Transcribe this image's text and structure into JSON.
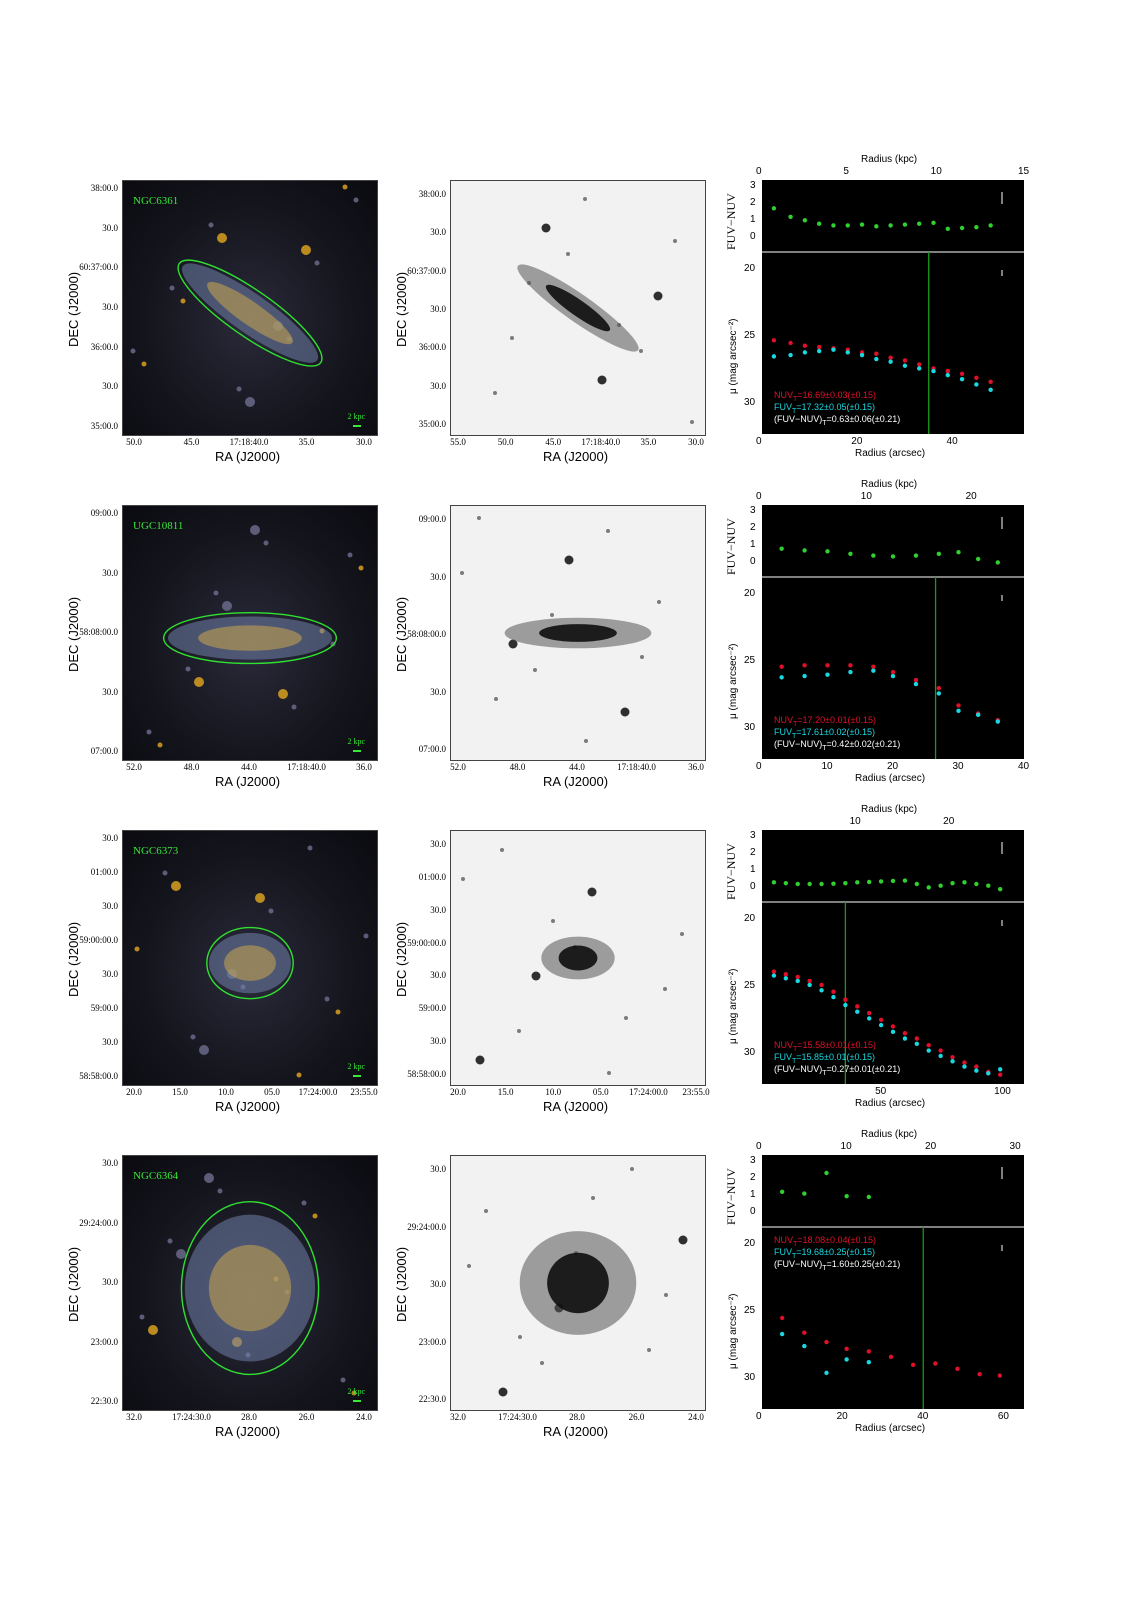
{
  "axis_titles": {
    "ra": "RA (J2000)",
    "dec": "DEC (J2000)",
    "radius_kpc": "Radius (kpc)",
    "radius_arcsec": "Radius (arcsec)",
    "fuv_nuv": "FUV−NUV",
    "mu": "μ (mag arcsec⁻²)"
  },
  "scale_label": "2 kpc",
  "colors": {
    "nuv": "#e0102a",
    "fuv": "#18d8e0",
    "color": "#30d030",
    "ellipse": "#30e030",
    "text_white": "#ffffff"
  },
  "rows": [
    {
      "galaxy": "NGC6361",
      "ellipse": {
        "rx": 0.34,
        "ry": 0.09,
        "angle": 35
      },
      "dec_ticks": [
        "38:00.0",
        "30.0",
        "60:37:00.0",
        "30.0",
        "36:00.0",
        "30.0",
        "35:00.0"
      ],
      "ra_ticks_color": [
        "50.0",
        "45.0",
        "17:18:40.0",
        "35.0",
        "30.0"
      ],
      "ra_ticks_gray": [
        "55.0",
        "50.0",
        "45.0",
        "17:18:40.0",
        "35.0",
        "30.0"
      ],
      "stats": [
        "NUV_T=16.69±0.03(±0.15)",
        "FUV_T=17.32±0.05(±0.15)",
        "(FUV−NUV)_T=0.63±0.06(±0.21)"
      ],
      "stats_pos": "bottom",
      "chart_data": {
        "type": "scatter",
        "kpc_ticks": [
          "0",
          "5",
          "10",
          "15"
        ],
        "kpc_max": 15,
        "xlim": [
          0,
          55
        ],
        "x_ticks": [
          "0",
          "20",
          "40"
        ],
        "color_ylim": [
          -0.5,
          3
        ],
        "color_ticks": [
          "0",
          "1",
          "2",
          "3"
        ],
        "mu_ylim": [
          19,
          32
        ],
        "mu_ticks": [
          "20",
          "25",
          "30"
        ],
        "cut_radius": 35,
        "color_points": [
          [
            2.5,
            1.7
          ],
          [
            6,
            1.2
          ],
          [
            9,
            1.0
          ],
          [
            12,
            0.8
          ],
          [
            15,
            0.7
          ],
          [
            18,
            0.7
          ],
          [
            21,
            0.75
          ],
          [
            24,
            0.65
          ],
          [
            27,
            0.7
          ],
          [
            30,
            0.75
          ],
          [
            33,
            0.8
          ],
          [
            36,
            0.85
          ],
          [
            39,
            0.5
          ],
          [
            42,
            0.55
          ],
          [
            45,
            0.6
          ],
          [
            48,
            0.7
          ]
        ],
        "nuv_points": [
          [
            2.5,
            25.3
          ],
          [
            6,
            25.5
          ],
          [
            9,
            25.7
          ],
          [
            12,
            25.8
          ],
          [
            15,
            25.9
          ],
          [
            18,
            26.0
          ],
          [
            21,
            26.2
          ],
          [
            24,
            26.3
          ],
          [
            27,
            26.6
          ],
          [
            30,
            26.8
          ],
          [
            33,
            27.1
          ],
          [
            36,
            27.4
          ],
          [
            39,
            27.6
          ],
          [
            42,
            27.8
          ],
          [
            45,
            28.1
          ],
          [
            48,
            28.4
          ]
        ],
        "fuv_points": [
          [
            2.5,
            26.5
          ],
          [
            6,
            26.4
          ],
          [
            9,
            26.2
          ],
          [
            12,
            26.1
          ],
          [
            15,
            26.0
          ],
          [
            18,
            26.2
          ],
          [
            21,
            26.4
          ],
          [
            24,
            26.7
          ],
          [
            27,
            26.9
          ],
          [
            30,
            27.2
          ],
          [
            33,
            27.4
          ],
          [
            36,
            27.6
          ],
          [
            39,
            27.9
          ],
          [
            42,
            28.2
          ],
          [
            45,
            28.6
          ],
          [
            48,
            29.0
          ]
        ]
      }
    },
    {
      "galaxy": "UGC10811",
      "ellipse": {
        "rx": 0.34,
        "ry": 0.1,
        "angle": 0
      },
      "dec_ticks": [
        "09:00.0",
        "30.0",
        "58:08:00.0",
        "30.0",
        "07:00.0"
      ],
      "ra_ticks_color": [
        "52.0",
        "48.0",
        "44.0",
        "17:18:40.0",
        "36.0"
      ],
      "ra_ticks_gray": [
        "52.0",
        "48.0",
        "44.0",
        "17:18:40.0",
        "36.0"
      ],
      "stats": [
        "NUV_T=17.20±0.01(±0.15)",
        "FUV_T=17.61±0.02(±0.15)",
        "(FUV−NUV)_T=0.42±0.02(±0.21)"
      ],
      "stats_pos": "bottom",
      "chart_data": {
        "type": "scatter",
        "kpc_ticks": [
          "0",
          "10",
          "20"
        ],
        "kpc_max": 25,
        "xlim": [
          0,
          40
        ],
        "x_ticks": [
          "0",
          "10",
          "20",
          "30",
          "40"
        ],
        "color_ylim": [
          -0.5,
          3
        ],
        "color_ticks": [
          "0",
          "1",
          "2",
          "3"
        ],
        "mu_ylim": [
          19,
          32
        ],
        "mu_ticks": [
          "20",
          "25",
          "30"
        ],
        "cut_radius": 26.5,
        "color_points": [
          [
            3,
            0.8
          ],
          [
            6.5,
            0.7
          ],
          [
            10,
            0.65
          ],
          [
            13.5,
            0.5
          ],
          [
            17,
            0.4
          ],
          [
            20,
            0.35
          ],
          [
            23.5,
            0.4
          ],
          [
            27,
            0.5
          ],
          [
            30,
            0.6
          ],
          [
            33,
            0.2
          ],
          [
            36,
            0.0
          ]
        ],
        "nuv_points": [
          [
            3,
            25.4
          ],
          [
            6.5,
            25.3
          ],
          [
            10,
            25.3
          ],
          [
            13.5,
            25.3
          ],
          [
            17,
            25.4
          ],
          [
            20,
            25.8
          ],
          [
            23.5,
            26.4
          ],
          [
            27,
            27.0
          ],
          [
            30,
            28.3
          ],
          [
            33,
            28.9
          ],
          [
            36,
            29.4
          ]
        ],
        "fuv_points": [
          [
            3,
            26.2
          ],
          [
            6.5,
            26.1
          ],
          [
            10,
            26.0
          ],
          [
            13.5,
            25.8
          ],
          [
            17,
            25.7
          ],
          [
            20,
            26.1
          ],
          [
            23.5,
            26.7
          ],
          [
            27,
            27.4
          ],
          [
            30,
            28.7
          ],
          [
            33,
            29.0
          ],
          [
            36,
            29.5
          ]
        ]
      }
    },
    {
      "galaxy": "NGC6373",
      "ellipse": {
        "rx": 0.17,
        "ry": 0.14,
        "angle": 0
      },
      "dec_ticks": [
        "30.0",
        "01:00.0",
        "30.0",
        "59:00:00.0",
        "30.0",
        "59:00.0",
        "30.0",
        "58:58:00.0"
      ],
      "ra_ticks_color": [
        "20.0",
        "15.0",
        "10.0",
        "05.0",
        "17:24:00.0",
        "23:55.0"
      ],
      "ra_ticks_gray": [
        "20.0",
        "15.0",
        "10.0",
        "05.0",
        "17:24:00.0",
        "23:55.0"
      ],
      "stats": [
        "NUV_T=15.58±0.01(±0.15)",
        "FUV_T=15.85±0.01(±0.15)",
        "(FUV−NUV)_T=0.27±0.01(±0.21)"
      ],
      "stats_pos": "bottom",
      "chart_data": {
        "type": "scatter",
        "kpc_ticks": [
          "10",
          "20"
        ],
        "kpc_max": 28,
        "xlim": [
          0,
          110
        ],
        "x_ticks": [
          "50",
          "100"
        ],
        "color_ylim": [
          -0.5,
          3
        ],
        "color_ticks": [
          "0",
          "1",
          "2",
          "3"
        ],
        "mu_ylim": [
          19,
          32
        ],
        "mu_ticks": [
          "20",
          "25",
          "30"
        ],
        "cut_radius": 35,
        "color_points": [
          [
            5,
            0.3
          ],
          [
            10,
            0.25
          ],
          [
            15,
            0.2
          ],
          [
            20,
            0.2
          ],
          [
            25,
            0.2
          ],
          [
            30,
            0.22
          ],
          [
            35,
            0.25
          ],
          [
            40,
            0.3
          ],
          [
            45,
            0.32
          ],
          [
            50,
            0.35
          ],
          [
            55,
            0.38
          ],
          [
            60,
            0.4
          ],
          [
            65,
            0.2
          ],
          [
            70,
            0.0
          ],
          [
            75,
            0.1
          ],
          [
            80,
            0.25
          ],
          [
            85,
            0.3
          ],
          [
            90,
            0.2
          ],
          [
            95,
            0.1
          ],
          [
            100,
            -0.1
          ]
        ],
        "nuv_points": [
          [
            5,
            23.9
          ],
          [
            10,
            24.1
          ],
          [
            15,
            24.3
          ],
          [
            20,
            24.6
          ],
          [
            25,
            24.9
          ],
          [
            30,
            25.4
          ],
          [
            35,
            26.0
          ],
          [
            40,
            26.5
          ],
          [
            45,
            27.0
          ],
          [
            50,
            27.5
          ],
          [
            55,
            28.0
          ],
          [
            60,
            28.5
          ],
          [
            65,
            28.9
          ],
          [
            70,
            29.4
          ],
          [
            75,
            29.8
          ],
          [
            80,
            30.3
          ],
          [
            85,
            30.7
          ],
          [
            90,
            31.0
          ],
          [
            95,
            31.4
          ],
          [
            100,
            31.6
          ]
        ],
        "fuv_points": [
          [
            5,
            24.2
          ],
          [
            10,
            24.4
          ],
          [
            15,
            24.6
          ],
          [
            20,
            24.9
          ],
          [
            25,
            25.3
          ],
          [
            30,
            25.8
          ],
          [
            35,
            26.4
          ],
          [
            40,
            26.9
          ],
          [
            45,
            27.4
          ],
          [
            50,
            27.9
          ],
          [
            55,
            28.4
          ],
          [
            60,
            28.9
          ],
          [
            65,
            29.3
          ],
          [
            70,
            29.8
          ],
          [
            75,
            30.2
          ],
          [
            80,
            30.6
          ],
          [
            85,
            31.0
          ],
          [
            90,
            31.3
          ],
          [
            95,
            31.5
          ],
          [
            100,
            31.2
          ]
        ]
      }
    },
    {
      "galaxy": "NGC6364",
      "ellipse": {
        "rx": 0.27,
        "ry": 0.34,
        "angle": 0
      },
      "dec_ticks": [
        "30.0",
        "29:24:00.0",
        "30.0",
        "23:00.0",
        "22:30.0"
      ],
      "ra_ticks_color": [
        "32.0",
        "17:24:30.0",
        "28.0",
        "26.0",
        "24.0"
      ],
      "ra_ticks_gray": [
        "32.0",
        "17:24:30.0",
        "28.0",
        "26.0",
        "24.0"
      ],
      "stats": [
        "NUV_T=18.08±0.04(±0.15)",
        "FUV_T=19.68±0.25(±0.15)",
        "(FUV−NUV)_T=1.60±0.25(±0.21)"
      ],
      "stats_pos": "top",
      "chart_data": {
        "type": "scatter",
        "kpc_ticks": [
          "0",
          "10",
          "20",
          "30"
        ],
        "kpc_max": 31,
        "xlim": [
          0,
          65
        ],
        "x_ticks": [
          "0",
          "20",
          "40",
          "60"
        ],
        "color_ylim": [
          -0.5,
          3
        ],
        "color_ticks": [
          "0",
          "1",
          "2",
          "3"
        ],
        "mu_ylim": [
          19,
          32
        ],
        "mu_ticks": [
          "20",
          "25",
          "30"
        ],
        "cut_radius": 40,
        "color_points": [
          [
            5,
            1.2
          ],
          [
            10.5,
            1.1
          ],
          [
            16,
            2.3
          ],
          [
            21,
            0.95
          ],
          [
            26.5,
            0.9
          ]
        ],
        "nuv_points": [
          [
            5,
            25.5
          ],
          [
            10.5,
            26.6
          ],
          [
            16,
            27.3
          ],
          [
            21,
            27.8
          ],
          [
            26.5,
            28.0
          ],
          [
            32,
            28.4
          ],
          [
            37.5,
            29.0
          ],
          [
            43,
            28.9
          ],
          [
            48.5,
            29.3
          ],
          [
            54,
            29.7
          ],
          [
            59,
            29.8
          ]
        ],
        "fuv_points": [
          [
            5,
            26.7
          ],
          [
            10.5,
            27.6
          ],
          [
            16,
            29.6
          ],
          [
            21,
            28.6
          ],
          [
            26.5,
            28.8
          ]
        ]
      }
    }
  ]
}
